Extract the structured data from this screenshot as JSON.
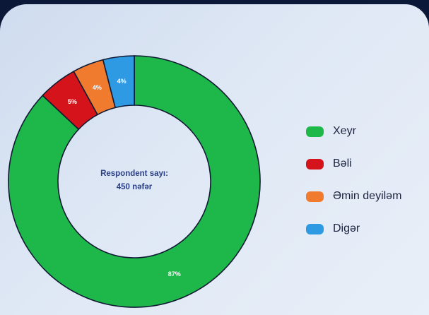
{
  "chart_data": {
    "type": "pie",
    "variant": "donut",
    "center_text": [
      "Respondent sayı:",
      "450 nəfər"
    ],
    "slices": [
      {
        "label": "Xeyr",
        "value": 87,
        "display": "87%",
        "color": "#1eb84a"
      },
      {
        "label": "Bəli",
        "value": 5,
        "display": "5%",
        "color": "#d4141a"
      },
      {
        "label": "Əmin deyiləm",
        "value": 4,
        "display": "4%",
        "color": "#f07a2e"
      },
      {
        "label": "Digər",
        "value": 4,
        "display": "4%",
        "color": "#2f9ae4"
      }
    ],
    "legend_position": "right"
  }
}
